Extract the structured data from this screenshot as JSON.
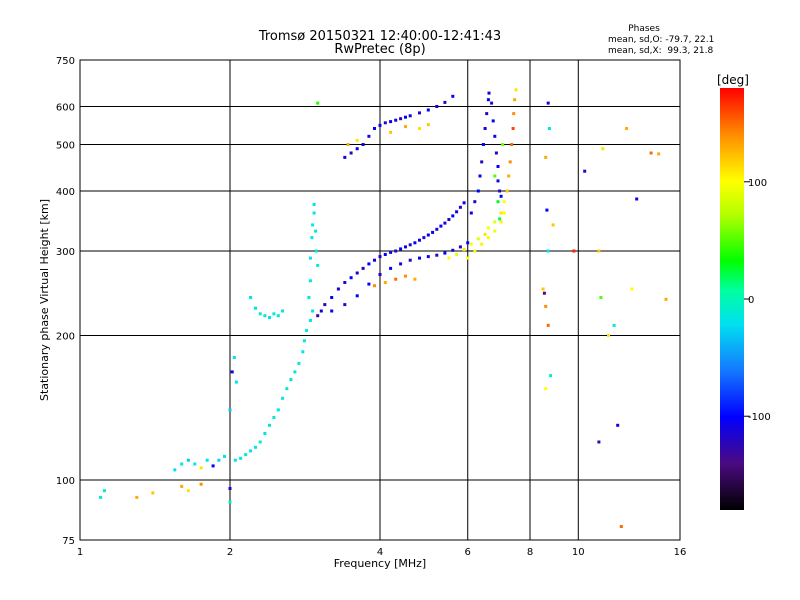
{
  "chart_data": {
    "type": "scatter",
    "title": "Tromsø 20150321 12:40:00-12:41:43",
    "subtitle": "RwPretec (8p)",
    "xlabel": "Frequency [MHz]",
    "ylabel": "Stationary phase Virtual Height [km]",
    "x_scale": "log",
    "y_scale": "log",
    "xlim": [
      1,
      16
    ],
    "ylim": [
      75,
      750
    ],
    "x_ticks": [
      1,
      2,
      4,
      6,
      8,
      10,
      16
    ],
    "x_tick_labels": [
      "1",
      "2",
      "4",
      "6",
      "8",
      "10",
      "16"
    ],
    "y_ticks": [
      75,
      100,
      200,
      300,
      400,
      500,
      600,
      750
    ],
    "y_tick_labels": [
      "75",
      "100",
      "200",
      "300",
      "400",
      "500",
      "600",
      "750"
    ],
    "grid": true,
    "stats": {
      "heading": "Phases",
      "line_o": "mean, sd,O: -79.7, 22.1",
      "line_x": "mean, sd,X:  99.3, 21.8"
    },
    "colorbar": {
      "label": "[deg]",
      "range": [
        -180,
        180
      ],
      "tick_values": [
        100,
        0,
        -100
      ],
      "tick_labels": [
        "100",
        "0",
        "-100"
      ]
    },
    "series": [
      {
        "color_by": "phase_deg",
        "points": [
          [
            1.1,
            92,
            -10
          ],
          [
            1.12,
            95,
            -5
          ],
          [
            1.4,
            94,
            120
          ],
          [
            1.55,
            105,
            -20
          ],
          [
            1.6,
            108,
            -15
          ],
          [
            1.65,
            110,
            -30
          ],
          [
            1.7,
            108,
            -10
          ],
          [
            1.75,
            106,
            110
          ],
          [
            1.8,
            110,
            -20
          ],
          [
            1.85,
            107,
            -100
          ],
          [
            1.9,
            110,
            -25
          ],
          [
            1.95,
            112,
            -15
          ],
          [
            1.6,
            97,
            130
          ],
          [
            1.65,
            95,
            110
          ],
          [
            1.75,
            98,
            140
          ],
          [
            2.0,
            96,
            -120
          ],
          [
            2.02,
            168,
            -110
          ],
          [
            2.04,
            180,
            -20
          ],
          [
            2.06,
            160,
            -20
          ],
          [
            2.0,
            140,
            -30
          ],
          [
            2.05,
            110,
            -20
          ],
          [
            2.1,
            111,
            -15
          ],
          [
            2.15,
            113,
            -10
          ],
          [
            2.2,
            115,
            -20
          ],
          [
            2.25,
            117,
            -15
          ],
          [
            2.3,
            120,
            -10
          ],
          [
            2.35,
            125,
            -20
          ],
          [
            2.4,
            130,
            -15
          ],
          [
            2.45,
            135,
            -10
          ],
          [
            2.5,
            140,
            -20
          ],
          [
            2.55,
            148,
            -15
          ],
          [
            2.6,
            155,
            -10
          ],
          [
            2.65,
            162,
            -20
          ],
          [
            2.7,
            168,
            -15
          ],
          [
            2.75,
            175,
            -10
          ],
          [
            2.8,
            185,
            -20
          ],
          [
            2.82,
            195,
            -15
          ],
          [
            2.85,
            205,
            -10
          ],
          [
            2.9,
            215,
            -20
          ],
          [
            2.93,
            225,
            -15
          ],
          [
            2.2,
            240,
            -15
          ],
          [
            2.25,
            228,
            -20
          ],
          [
            2.3,
            222,
            -10
          ],
          [
            2.35,
            220,
            -15
          ],
          [
            2.4,
            218,
            -20
          ],
          [
            2.45,
            222,
            -10
          ],
          [
            2.5,
            220,
            -15
          ],
          [
            2.55,
            225,
            -20
          ],
          [
            2.88,
            240,
            -10
          ],
          [
            2.9,
            260,
            -15
          ],
          [
            2.9,
            290,
            -20
          ],
          [
            2.92,
            320,
            -15
          ],
          [
            2.93,
            340,
            -10
          ],
          [
            2.95,
            360,
            -15
          ],
          [
            2.95,
            375,
            -20
          ],
          [
            2.97,
            330,
            -10
          ],
          [
            2.98,
            300,
            -15
          ],
          [
            3.0,
            280,
            -10
          ],
          [
            3.0,
            220,
            -130
          ],
          [
            3.05,
            225,
            -110
          ],
          [
            3.1,
            232,
            -120
          ],
          [
            3.2,
            240,
            -100
          ],
          [
            3.3,
            250,
            -110
          ],
          [
            3.4,
            258,
            -120
          ],
          [
            3.5,
            264,
            -100
          ],
          [
            3.6,
            270,
            -110
          ],
          [
            3.7,
            276,
            -120
          ],
          [
            3.8,
            282,
            -100
          ],
          [
            3.9,
            287,
            -110
          ],
          [
            4.0,
            292,
            -120
          ],
          [
            4.1,
            295,
            -100
          ],
          [
            4.2,
            298,
            -110
          ],
          [
            4.3,
            300,
            -120
          ],
          [
            4.4,
            303,
            -100
          ],
          [
            4.5,
            306,
            -110
          ],
          [
            4.6,
            309,
            -120
          ],
          [
            4.7,
            312,
            -100
          ],
          [
            4.8,
            316,
            -110
          ],
          [
            4.9,
            320,
            -120
          ],
          [
            5.0,
            324,
            -100
          ],
          [
            5.1,
            328,
            -110
          ],
          [
            5.2,
            333,
            -120
          ],
          [
            5.3,
            338,
            -100
          ],
          [
            5.4,
            343,
            -110
          ],
          [
            5.5,
            349,
            -120
          ],
          [
            5.6,
            355,
            -100
          ],
          [
            5.7,
            362,
            -110
          ],
          [
            5.8,
            370,
            -120
          ],
          [
            5.9,
            378,
            -100
          ],
          [
            3.2,
            225,
            -110
          ],
          [
            3.4,
            232,
            -120
          ],
          [
            3.6,
            242,
            -100
          ],
          [
            3.8,
            256,
            -110
          ],
          [
            4.0,
            268,
            -120
          ],
          [
            4.2,
            276,
            -100
          ],
          [
            4.4,
            282,
            -110
          ],
          [
            4.6,
            287,
            -120
          ],
          [
            4.8,
            290,
            -100
          ],
          [
            5.0,
            292,
            -110
          ],
          [
            5.2,
            294,
            -120
          ],
          [
            5.4,
            297,
            -100
          ],
          [
            5.6,
            301,
            -110
          ],
          [
            5.8,
            306,
            -120
          ],
          [
            6.0,
            312,
            -100
          ],
          [
            6.1,
            360,
            -110
          ],
          [
            6.2,
            380,
            -120
          ],
          [
            6.3,
            400,
            -100
          ],
          [
            6.35,
            430,
            -110
          ],
          [
            6.4,
            460,
            -120
          ],
          [
            6.45,
            500,
            -100
          ],
          [
            6.5,
            540,
            -110
          ],
          [
            6.55,
            580,
            -120
          ],
          [
            6.6,
            620,
            -100
          ],
          [
            6.62,
            640,
            -110
          ],
          [
            6.7,
            610,
            -120
          ],
          [
            6.75,
            560,
            -100
          ],
          [
            6.8,
            520,
            -110
          ],
          [
            6.85,
            480,
            -120
          ],
          [
            6.9,
            450,
            -100
          ],
          [
            6.9,
            420,
            -110
          ],
          [
            6.95,
            400,
            -120
          ],
          [
            7.0,
            390,
            -100
          ],
          [
            3.4,
            470,
            -110
          ],
          [
            3.5,
            480,
            -120
          ],
          [
            3.6,
            490,
            -100
          ],
          [
            3.7,
            500,
            -110
          ],
          [
            3.8,
            520,
            -120
          ],
          [
            3.9,
            540,
            -100
          ],
          [
            4.0,
            548,
            -110
          ],
          [
            4.1,
            555,
            -120
          ],
          [
            4.2,
            558,
            -100
          ],
          [
            4.3,
            562,
            -110
          ],
          [
            4.4,
            566,
            -120
          ],
          [
            4.5,
            570,
            -100
          ],
          [
            4.6,
            574,
            -110
          ],
          [
            4.8,
            582,
            -120
          ],
          [
            5.0,
            590,
            -100
          ],
          [
            5.2,
            600,
            -110
          ],
          [
            5.4,
            612,
            -120
          ],
          [
            5.6,
            630,
            -100
          ],
          [
            3.45,
            500,
            130
          ],
          [
            3.6,
            510,
            110
          ],
          [
            4.2,
            530,
            120
          ],
          [
            4.5,
            545,
            130
          ],
          [
            4.8,
            540,
            110
          ],
          [
            5.0,
            550,
            120
          ],
          [
            3.9,
            254,
            140
          ],
          [
            4.1,
            258,
            130
          ],
          [
            4.3,
            262,
            150
          ],
          [
            4.5,
            266,
            140
          ],
          [
            4.7,
            262,
            130
          ],
          [
            5.5,
            290,
            100
          ],
          [
            5.7,
            295,
            90
          ],
          [
            5.9,
            302,
            110
          ],
          [
            6.1,
            310,
            100
          ],
          [
            6.3,
            318,
            90
          ],
          [
            6.5,
            325,
            110
          ],
          [
            6.6,
            335,
            100
          ],
          [
            6.8,
            345,
            90
          ],
          [
            7.0,
            360,
            110
          ],
          [
            7.1,
            380,
            100
          ],
          [
            7.2,
            400,
            120
          ],
          [
            7.25,
            430,
            130
          ],
          [
            7.3,
            460,
            140
          ],
          [
            7.35,
            500,
            150
          ],
          [
            7.4,
            540,
            160
          ],
          [
            7.42,
            580,
            140
          ],
          [
            7.45,
            620,
            130
          ],
          [
            7.5,
            650,
            110
          ],
          [
            6.0,
            290,
            100
          ],
          [
            6.2,
            300,
            95
          ],
          [
            6.4,
            310,
            105
          ],
          [
            6.6,
            320,
            100
          ],
          [
            6.8,
            330,
            95
          ],
          [
            7.0,
            345,
            105
          ],
          [
            7.1,
            360,
            100
          ],
          [
            6.8,
            430,
            50
          ],
          [
            6.9,
            380,
            30
          ],
          [
            6.95,
            350,
            20
          ],
          [
            7.05,
            500,
            60
          ],
          [
            3.0,
            610,
            40
          ],
          [
            8.7,
            610,
            -110
          ],
          [
            8.75,
            540,
            -20
          ],
          [
            8.6,
            470,
            130
          ],
          [
            8.5,
            250,
            120
          ],
          [
            8.6,
            230,
            140
          ],
          [
            8.7,
            210,
            150
          ],
          [
            8.65,
            365,
            -100
          ],
          [
            8.9,
            340,
            120
          ],
          [
            8.7,
            300,
            -20
          ],
          [
            8.55,
            245,
            -140
          ],
          [
            8.6,
            155,
            100
          ],
          [
            8.8,
            165,
            -10
          ],
          [
            10.3,
            440,
            -120
          ],
          [
            11.2,
            490,
            110
          ],
          [
            11.0,
            300,
            120
          ],
          [
            11.5,
            200,
            110
          ],
          [
            11.8,
            210,
            -10
          ],
          [
            11.1,
            240,
            50
          ],
          [
            12.5,
            540,
            130
          ],
          [
            13.1,
            385,
            -110
          ],
          [
            14.0,
            480,
            150
          ],
          [
            14.5,
            478,
            130
          ],
          [
            15.0,
            238,
            130
          ],
          [
            11.0,
            120,
            -130
          ],
          [
            12.0,
            130,
            -110
          ],
          [
            12.2,
            80,
            150
          ],
          [
            12.8,
            250,
            100
          ],
          [
            9.8,
            300,
            170
          ],
          [
            2.0,
            90,
            -10
          ],
          [
            1.3,
            92,
            130
          ]
        ]
      }
    ]
  }
}
